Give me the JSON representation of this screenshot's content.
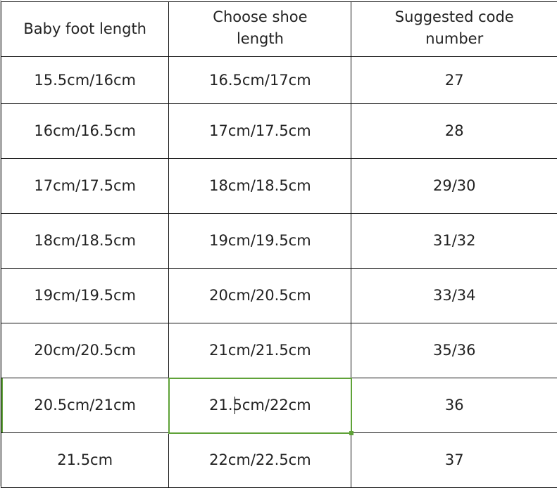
{
  "table": {
    "headers": [
      "Baby foot length",
      "Choose shoe length",
      "Suggested code number"
    ],
    "rows": [
      [
        "15.5cm/16cm",
        "16.5cm/17cm",
        "27"
      ],
      [
        "16cm/16.5cm",
        "17cm/17.5cm",
        "28"
      ],
      [
        "17cm/17.5cm",
        "18cm/18.5cm",
        "29/30"
      ],
      [
        "18cm/18.5cm",
        "19cm/19.5cm",
        "31/32"
      ],
      [
        "19cm/19.5cm",
        "20cm/20.5cm",
        "33/34"
      ],
      [
        "20cm/20.5cm",
        "21cm/21.5cm",
        "35/36"
      ],
      [
        "20.5cm/21cm",
        "21.5cm/22cm",
        "36"
      ],
      [
        "21.5cm",
        "22cm/22.5cm",
        "37"
      ]
    ],
    "selected_cell_row": 6,
    "selected_cell_col": 1,
    "selection_color": "#5fa238"
  }
}
